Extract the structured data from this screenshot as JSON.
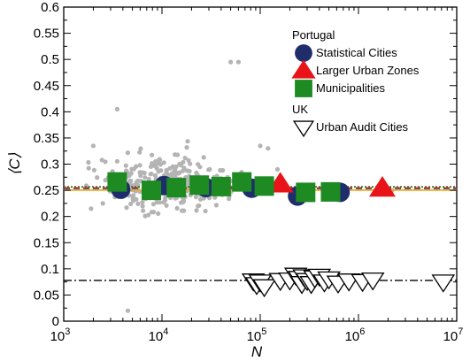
{
  "chart_data": {
    "type": "scatter",
    "title": "",
    "xlabel": "N",
    "ylabel": "⟨C⟩",
    "x_scale": "log",
    "xlim": [
      1000,
      10000000
    ],
    "ylim": [
      0,
      0.6
    ],
    "x_ticks": [
      {
        "value": 1000,
        "base": "10",
        "exp": "3"
      },
      {
        "value": 10000,
        "base": "10",
        "exp": "4"
      },
      {
        "value": 100000,
        "base": "10",
        "exp": "5"
      },
      {
        "value": 1000000,
        "base": "10",
        "exp": "6"
      },
      {
        "value": 10000000,
        "base": "10",
        "exp": "7"
      }
    ],
    "y_ticks": [
      "0",
      "0.05",
      "0.1",
      "0.15",
      "0.2",
      "0.25",
      "0.3",
      "0.35",
      "0.4",
      "0.45",
      "0.5",
      "0.55",
      "0.6"
    ],
    "grid": false,
    "legend": {
      "placement": "top-right",
      "groups": [
        {
          "title": "Portugal",
          "entries": [
            "Statistical Cities",
            "Larger Urban Zones",
            "Municipalities"
          ]
        },
        {
          "title": "UK",
          "entries": [
            "Urban Audit Cities"
          ]
        }
      ]
    },
    "background_points": {
      "description_color": "#b0b0b0",
      "seed": 7,
      "count": 320,
      "log10_mean": 4.05,
      "log10_sd": 0.32,
      "y_mean": 0.262,
      "y_sd": 0.022,
      "fixed": [
        {
          "x": 50000,
          "y": 0.495
        },
        {
          "x": 60000,
          "y": 0.495
        },
        {
          "x": 3500,
          "y": 0.405
        },
        {
          "x": 2000,
          "y": 0.335
        },
        {
          "x": 4500,
          "y": 0.02
        },
        {
          "x": 100000,
          "y": 0.335
        },
        {
          "x": 120000,
          "y": 0.33
        },
        {
          "x": 1900,
          "y": 0.215
        },
        {
          "x": 2500,
          "y": 0.225
        },
        {
          "x": 150000,
          "y": 0.29
        },
        {
          "x": 2200000,
          "y": 0.25
        }
      ]
    },
    "series": [
      {
        "name": "Statistical Cities",
        "marker": "circle",
        "color": "#1f2d6b",
        "x": [
          3800,
          10500,
          28000,
          82000,
          240000,
          650000
        ],
        "y": [
          0.252,
          0.259,
          0.255,
          0.254,
          0.239,
          0.246
        ]
      },
      {
        "name": "Larger Urban Zones",
        "marker": "triangle-up",
        "color": "#e8141a",
        "x": [
          160000,
          1750000
        ],
        "y": [
          0.262,
          0.254
        ]
      },
      {
        "name": "Municipalities",
        "marker": "square",
        "color": "#1d8a22",
        "x": [
          3500,
          7800,
          14000,
          24000,
          40000,
          65000,
          110000,
          290000,
          520000
        ],
        "y": [
          0.266,
          0.25,
          0.255,
          0.26,
          0.257,
          0.266,
          0.258,
          0.246,
          0.247
        ]
      },
      {
        "name": "Urban Audit Cities",
        "marker": "triangle-down-open",
        "color": "#000000",
        "x": [
          85000,
          92000,
          100000,
          110000,
          160000,
          200000,
          230000,
          250000,
          265000,
          280000,
          300000,
          330000,
          360000,
          400000,
          450000,
          500000,
          620000,
          800000,
          1100000,
          1400000,
          7300000
        ],
        "y": [
          0.077,
          0.07,
          0.075,
          0.066,
          0.078,
          0.079,
          0.088,
          0.082,
          0.072,
          0.085,
          0.078,
          0.072,
          0.083,
          0.086,
          0.075,
          0.081,
          0.073,
          0.077,
          0.076,
          0.079,
          0.075
        ]
      }
    ],
    "reference_lines": [
      {
        "name": "Portugal fit 1",
        "y": 0.2565,
        "style": "dotted",
        "color": "#1d8a22"
      },
      {
        "name": "Portugal fit 2",
        "y": 0.2545,
        "style": "dashed",
        "color": "#e8141a"
      },
      {
        "name": "Portugal fit 3",
        "y": 0.2525,
        "style": "dashed",
        "color": "#2a62c9"
      },
      {
        "name": "Portugal fit 4",
        "y": 0.2505,
        "style": "solid",
        "color": "#f2a81d"
      },
      {
        "name": "UK fit",
        "y": 0.078,
        "style": "dashdot",
        "color": "#000000"
      }
    ]
  }
}
